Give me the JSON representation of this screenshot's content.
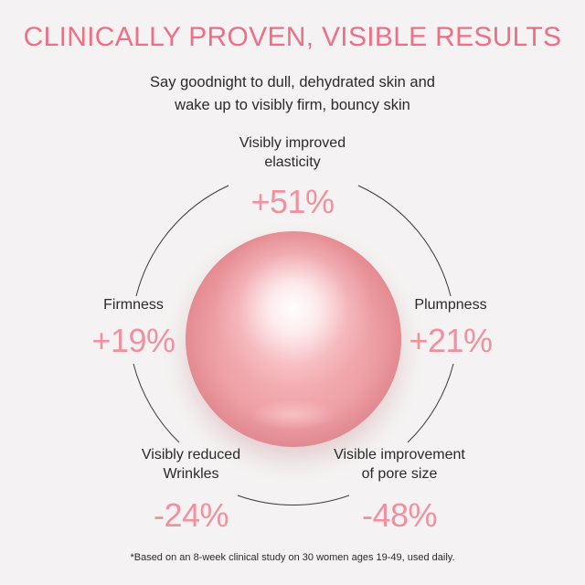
{
  "header": {
    "title": "CLINICALLY PROVEN, VISIBLE RESULTS",
    "subtitle_line1": "Say goodnight to dull, dehydrated skin and",
    "subtitle_line2": "wake up to visibly firm, bouncy skin"
  },
  "colors": {
    "accent": "#ee6f86",
    "value_pink": "#f0919f",
    "background": "#f4f2f2",
    "text": "#2a2a2a"
  },
  "stats": {
    "elasticity": {
      "label_line1": "Visibly improved",
      "label_line2": "elasticity",
      "value": "+51%"
    },
    "firmness": {
      "label_line1": "Firmness",
      "value": "+19%"
    },
    "plumpness": {
      "label_line1": "Plumpness",
      "value": "+21%"
    },
    "wrinkles": {
      "label_line1": "Visibly reduced",
      "label_line2": "Wrinkles",
      "value": "-24%"
    },
    "pore_size": {
      "label_line1": "Visible improvement",
      "label_line2": "of pore size",
      "value": "-48%"
    }
  },
  "footnote": "*Based on an 8-week clinical study on 30 women ages 19-49, used daily."
}
